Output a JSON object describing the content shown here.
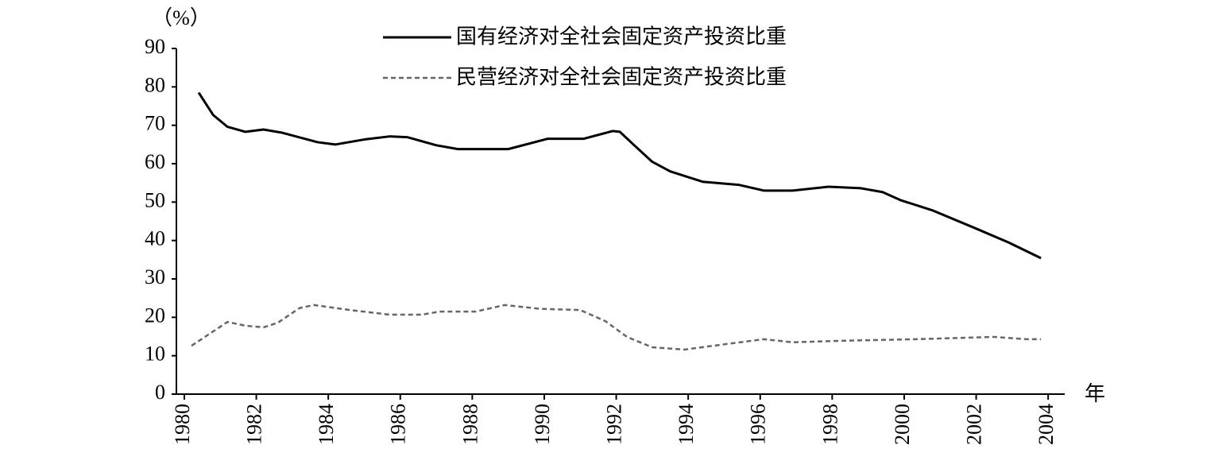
{
  "chart_data": {
    "type": "line",
    "y_label": "（%）",
    "x_label": "年",
    "xlim": [
      1979.78,
      2004.46
    ],
    "xticks": [
      1980,
      1982,
      1984,
      1986,
      1988,
      1990,
      1992,
      1994,
      1996,
      1998,
      2000,
      2002,
      2004
    ],
    "ylim": [
      0,
      90
    ],
    "yticks": [
      0,
      10,
      20,
      30,
      40,
      50,
      60,
      70,
      80,
      90
    ],
    "legend": "top",
    "series": [
      {
        "name": "国有经济对全社会固定资产投资比重",
        "color": "#000000",
        "style": "solid",
        "x": [
          1980.4,
          1980.8,
          1981.2,
          1981.7,
          1982.2,
          1982.7,
          1983.7,
          1984.2,
          1985.0,
          1985.7,
          1986.2,
          1987.0,
          1987.6,
          1989.0,
          1990.1,
          1991.1,
          1991.9,
          1992.1,
          1992.5,
          1993.0,
          1993.5,
          1994.4,
          1995.4,
          1996.1,
          1996.9,
          1997.9,
          1998.8,
          1999.4,
          1999.9,
          2000.8,
          2002.0,
          2002.9,
          2003.8
        ],
        "values": [
          78.5,
          72.7,
          69.6,
          68.3,
          68.9,
          68.1,
          65.6,
          65.0,
          66.3,
          67.1,
          66.9,
          64.8,
          63.8,
          63.8,
          66.5,
          66.5,
          68.5,
          68.3,
          64.8,
          60.5,
          58.0,
          55.3,
          54.5,
          53.0,
          53.0,
          54.0,
          53.6,
          52.6,
          50.5,
          47.8,
          43.1,
          39.5,
          35.4
        ]
      },
      {
        "name": "民营经济对全社会固定资产投资比重",
        "color": "#666666",
        "style": "dashed",
        "x": [
          1980.2,
          1980.7,
          1981.2,
          1981.7,
          1982.2,
          1982.6,
          1983.2,
          1983.6,
          1984.6,
          1985.7,
          1986.6,
          1987.1,
          1988.1,
          1988.9,
          1989.9,
          1991.0,
          1991.7,
          1992.3,
          1993.0,
          1993.9,
          1994.7,
          1996.1,
          1996.9,
          1998.3,
          2000.3,
          2002.5,
          2003.4,
          2003.8
        ],
        "values": [
          12.6,
          15.7,
          18.8,
          17.8,
          17.4,
          18.6,
          22.4,
          23.2,
          21.9,
          20.7,
          20.7,
          21.5,
          21.5,
          23.2,
          22.2,
          21.9,
          19.0,
          14.9,
          12.2,
          11.6,
          12.6,
          14.3,
          13.5,
          13.9,
          14.3,
          14.9,
          14.3,
          14.3
        ]
      }
    ]
  }
}
